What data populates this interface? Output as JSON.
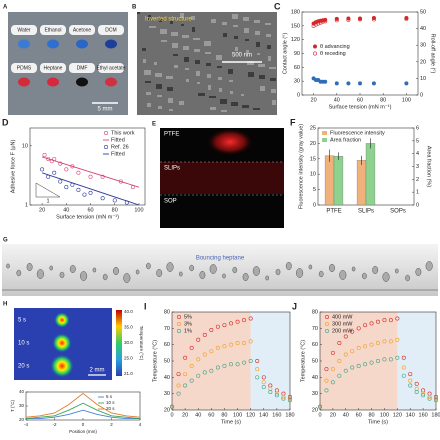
{
  "image_panels": {
    "A": {
      "label": "A",
      "liquids": [
        "Water",
        "Ethanol",
        "Acetone",
        "DCM",
        "PDMS",
        "Heptane",
        "DMF",
        "Ethyl acetate"
      ],
      "scale_bar": "5 mm"
    },
    "B": {
      "label": "B",
      "caption": "Inverted structure",
      "scale_bar": "500 nm"
    },
    "E": {
      "label": "E",
      "rows": [
        "PTFE",
        "SLIPs",
        "SOP"
      ]
    },
    "G": {
      "label": "G",
      "caption": "Bouncing heptane"
    },
    "H": {
      "label": "H",
      "times": [
        "5 s",
        "10 s",
        "20 s"
      ],
      "scale_bar": "2 mm",
      "colorbar_title": "Temperature (°C)",
      "colorbar_ticks": [
        "40.0",
        "35.0",
        "30.0",
        "25.0",
        "21.0"
      ]
    }
  },
  "chart_data": [
    {
      "type": "scatter",
      "label": "C",
      "xlabel": "Surface tension (mN m⁻¹)",
      "ylabel": "Contact angle (°)",
      "y2label": "Roll-off angle (°)",
      "x": [
        20,
        22,
        24,
        26,
        28,
        30,
        40,
        50,
        60,
        72,
        100
      ],
      "xlim": [
        10,
        110
      ],
      "xticks": [
        20,
        40,
        60,
        80,
        100
      ],
      "ylim": [
        0,
        180
      ],
      "yticks": [
        0,
        30,
        60,
        90,
        120,
        150,
        180
      ],
      "y2lim": [
        0,
        50
      ],
      "y2ticks": [
        0,
        10,
        20,
        30,
        40,
        50
      ],
      "legend": "center-left",
      "series": [
        {
          "name": "θ advancing",
          "color": "#d62728",
          "filled": true,
          "values": [
            155,
            158,
            160,
            161,
            162,
            163,
            165,
            166,
            166,
            167,
            167
          ]
        },
        {
          "name": "θ receding",
          "color": "#d62728",
          "filled": false,
          "values": [
            150,
            153,
            155,
            157,
            159,
            160,
            162,
            163,
            164,
            164,
            165
          ]
        },
        {
          "color": "#2f6db5",
          "filled": true,
          "axis": "y2",
          "values": [
            10,
            9,
            9,
            8,
            8,
            8,
            7,
            7,
            7,
            7,
            7
          ]
        }
      ]
    },
    {
      "type": "scatter",
      "label": "D",
      "xlabel": "Surface tension (mN m⁻¹)",
      "ylabel": "Adhesive force F (μN)",
      "ylog": true,
      "xlim": [
        10,
        105
      ],
      "xticks": [
        20,
        40,
        60,
        80,
        100
      ],
      "ylim": [
        1,
        20
      ],
      "yticks": [
        1,
        10
      ],
      "legend": "top-right",
      "annotation": "1",
      "series": [
        {
          "name": "This work",
          "color": "#d6457a",
          "filled": false,
          "x": [
            22,
            25,
            28,
            30,
            35,
            40,
            45,
            50,
            60,
            70,
            85,
            95
          ],
          "values": [
            7,
            6,
            5.5,
            6,
            5,
            4,
            4.5,
            3.5,
            3,
            3,
            2.5,
            2
          ]
        },
        {
          "name": "Fitted",
          "color": "#d6457a",
          "style": "line",
          "x": [
            20,
            100
          ],
          "values": [
            6.5,
            2
          ]
        },
        {
          "name": "Ref. 26",
          "color": "#2b3a9e",
          "filled": false,
          "x": [
            20,
            25,
            30,
            35,
            40,
            45,
            50,
            55,
            60,
            70,
            80,
            90
          ],
          "values": [
            4,
            3,
            3.5,
            2.5,
            2,
            2.2,
            1.8,
            1.5,
            1.6,
            1.3,
            1.2,
            1.1
          ]
        },
        {
          "name": "Fitted",
          "color": "#2b3a9e",
          "style": "line",
          "x": [
            20,
            100
          ],
          "values": [
            3.5,
            1
          ]
        }
      ]
    },
    {
      "type": "bar",
      "label": "F",
      "categories": [
        "PTFE",
        "SLIPs",
        "SOPs"
      ],
      "ylabel": "Fluorescence intensity (gray value)",
      "y2label": "Area fraction (%)",
      "ylim": [
        0,
        25
      ],
      "yticks": [
        0,
        5,
        10,
        15,
        20,
        25
      ],
      "y2lim": [
        0,
        6
      ],
      "y2ticks": [
        0,
        1,
        2,
        3,
        4,
        5,
        6
      ],
      "legend": "top-left",
      "series": [
        {
          "name": "Fluorescence intensity",
          "color": "#f0b27a",
          "values": [
            16,
            14.5,
            0
          ],
          "errors": [
            2,
            1.5,
            0
          ]
        },
        {
          "name": "Area fraction",
          "color": "#8fd18f",
          "axis": "y2",
          "values": [
            3.8,
            4.8,
            0
          ],
          "errors": [
            0.3,
            0.4,
            0
          ]
        }
      ]
    },
    {
      "type": "line",
      "xlabel": "Position (mm)",
      "ylabel": "T (°C)",
      "x": [
        -4,
        -3,
        -2,
        -1,
        0,
        1,
        2,
        3,
        4
      ],
      "xlim": [
        -4,
        4
      ],
      "xticks": [
        -4,
        -2,
        0,
        2,
        4
      ],
      "ylim": [
        20,
        40
      ],
      "yticks": [
        20,
        30,
        40
      ],
      "legend": "top-right",
      "series": [
        {
          "name": "5 s",
          "color": "#4a7fd4",
          "values": [
            21,
            21,
            22,
            24,
            27,
            24,
            22,
            21,
            21
          ]
        },
        {
          "name": "10 s",
          "color": "#3aa655",
          "values": [
            21,
            22,
            23,
            27,
            32,
            27,
            23,
            22,
            21
          ]
        },
        {
          "name": "20 s",
          "color": "#e07b2a",
          "values": [
            22,
            23,
            25,
            31,
            39,
            31,
            25,
            23,
            22
          ]
        }
      ]
    },
    {
      "type": "scatter",
      "label": "I",
      "xlabel": "Time (s)",
      "ylabel": "Temperature (°C)",
      "x": [
        0,
        10,
        20,
        30,
        40,
        50,
        60,
        70,
        80,
        90,
        100,
        110,
        120,
        130,
        140,
        150,
        160,
        170,
        180
      ],
      "xlim": [
        0,
        180
      ],
      "xticks": [
        0,
        20,
        40,
        60,
        80,
        100,
        120,
        140,
        160,
        180
      ],
      "ylim": [
        20,
        80
      ],
      "yticks": [
        20,
        30,
        40,
        50,
        60,
        70,
        80
      ],
      "legend": "top-left",
      "spans": [
        {
          "range": [
            0,
            120
          ],
          "color": "#e9a98a"
        },
        {
          "range": [
            120,
            180
          ],
          "color": "#bcd8ee"
        }
      ],
      "series": [
        {
          "name": "5%",
          "color": "#d62728",
          "filled": false,
          "values": [
            22,
            42,
            52,
            58,
            63,
            66,
            69,
            71,
            72,
            73,
            74,
            75,
            76,
            50,
            40,
            35,
            32,
            30,
            28
          ]
        },
        {
          "name": "3%",
          "color": "#f0a020",
          "filled": false,
          "values": [
            22,
            35,
            42,
            47,
            51,
            54,
            56,
            58,
            59,
            60,
            61,
            61,
            62,
            45,
            37,
            33,
            30,
            28,
            27
          ]
        },
        {
          "name": "1%",
          "color": "#3aa688",
          "filled": false,
          "values": [
            22,
            30,
            35,
            38,
            41,
            43,
            44,
            46,
            47,
            48,
            48,
            49,
            50,
            40,
            34,
            31,
            29,
            27,
            26
          ]
        }
      ]
    },
    {
      "type": "scatter",
      "label": "J",
      "xlabel": "Time (s)",
      "ylabel": "Temperature (°C)",
      "x": [
        0,
        10,
        20,
        30,
        40,
        50,
        60,
        70,
        80,
        90,
        100,
        110,
        120,
        130,
        140,
        150,
        160,
        170,
        180
      ],
      "xlim": [
        0,
        180
      ],
      "xticks": [
        0,
        20,
        40,
        60,
        80,
        100,
        120,
        140,
        160,
        180
      ],
      "ylim": [
        20,
        80
      ],
      "yticks": [
        20,
        30,
        40,
        50,
        60,
        70,
        80
      ],
      "legend": "top-left",
      "spans": [
        {
          "range": [
            0,
            120
          ],
          "color": "#e9a98a"
        },
        {
          "range": [
            120,
            180
          ],
          "color": "#bcd8ee"
        }
      ],
      "series": [
        {
          "name": "400 mW",
          "color": "#d62728",
          "filled": false,
          "values": [
            22,
            45,
            55,
            61,
            65,
            68,
            70,
            72,
            73,
            74,
            75,
            75,
            76,
            52,
            42,
            36,
            32,
            30,
            28
          ]
        },
        {
          "name": "300 mW",
          "color": "#f0a020",
          "filled": false,
          "values": [
            22,
            38,
            45,
            50,
            54,
            56,
            58,
            59,
            60,
            61,
            62,
            62,
            63,
            46,
            38,
            33,
            30,
            28,
            27
          ]
        },
        {
          "name": "200 mW",
          "color": "#3aa688",
          "filled": false,
          "values": [
            22,
            32,
            37,
            41,
            44,
            46,
            47,
            48,
            49,
            50,
            51,
            51,
            52,
            41,
            35,
            31,
            29,
            27,
            26
          ]
        }
      ]
    }
  ]
}
